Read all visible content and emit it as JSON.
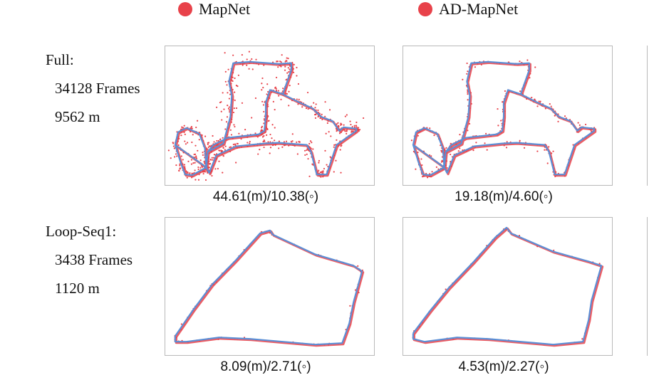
{
  "legend": {
    "items": [
      {
        "label": "MapNet",
        "color": "#e8424a"
      },
      {
        "label": "AD-MapNet",
        "color": "#e8424a"
      }
    ]
  },
  "rows": [
    {
      "name": "Full:",
      "frames": "34128 Frames",
      "distance": "9562 m"
    },
    {
      "name": "Loop-Seq1:",
      "frames": "3438 Frames",
      "distance": "1120 m"
    }
  ],
  "chart_data": [
    {
      "type": "scatter",
      "method": "MapNet",
      "sequence": "Full",
      "caption": "44.61(m)/10.38(◦)",
      "series": [
        {
          "color": "#e8424a"
        },
        {
          "color": "#5b8fd6"
        }
      ],
      "xlabel": "",
      "ylabel": ""
    },
    {
      "type": "scatter",
      "method": "AD-MapNet",
      "sequence": "Full",
      "caption": "19.18(m)/4.60(◦)",
      "series": [
        {
          "color": "#e8424a"
        },
        {
          "color": "#5b8fd6"
        }
      ],
      "xlabel": "",
      "ylabel": ""
    },
    {
      "type": "scatter",
      "method": "MapNet",
      "sequence": "Loop-Seq1",
      "caption": "8.09(m)/2.71(◦)",
      "series": [
        {
          "color": "#e8424a"
        },
        {
          "color": "#5b8fd6"
        }
      ],
      "xlabel": "",
      "ylabel": ""
    },
    {
      "type": "scatter",
      "method": "AD-MapNet",
      "sequence": "Loop-Seq1",
      "caption": "4.53(m)/2.27(◦)",
      "series": [
        {
          "color": "#e8424a"
        },
        {
          "color": "#5b8fd6"
        }
      ],
      "xlabel": "",
      "ylabel": ""
    }
  ]
}
